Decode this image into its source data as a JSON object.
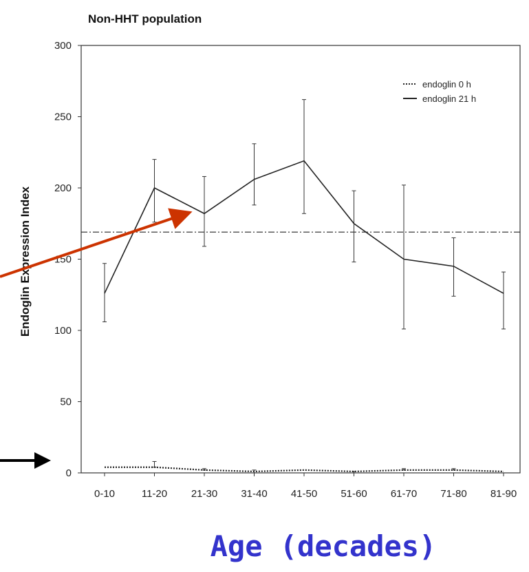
{
  "chart_data": {
    "type": "line",
    "title": "Non-HHT population",
    "xlabel": "Age (decades)",
    "ylabel": "Endoglin Expression Index",
    "categories": [
      "0-10",
      "11-20",
      "21-30",
      "31-40",
      "41-50",
      "51-60",
      "61-70",
      "71-80",
      "81-90"
    ],
    "ylim": [
      0,
      300
    ],
    "yticks": [
      0,
      50,
      100,
      150,
      200,
      250,
      300
    ],
    "reference_line": 169,
    "legend_position": "top-right",
    "grid": false,
    "series": [
      {
        "name": "endoglin 0 h",
        "style": "dotted",
        "values": [
          4,
          4,
          2,
          1,
          2,
          1,
          2,
          2,
          1
        ],
        "err_upper": [
          4,
          8,
          3,
          2,
          2,
          1,
          3,
          3,
          1
        ],
        "err_lower": [
          4,
          4,
          2,
          0,
          2,
          0,
          2,
          2,
          1
        ]
      },
      {
        "name": "endoglin 21 h",
        "style": "solid",
        "values": [
          126,
          200,
          182,
          206,
          219,
          175,
          150,
          145,
          126
        ],
        "err_upper": [
          147,
          220,
          208,
          231,
          262,
          198,
          202,
          165,
          141
        ],
        "err_lower": [
          106,
          176,
          159,
          188,
          182,
          148,
          101,
          124,
          101
        ]
      }
    ],
    "annotation_colors": {
      "red_arrow": "#cc3300",
      "black_arrow": "#000000",
      "xlabel_color": "#3333cc"
    }
  }
}
